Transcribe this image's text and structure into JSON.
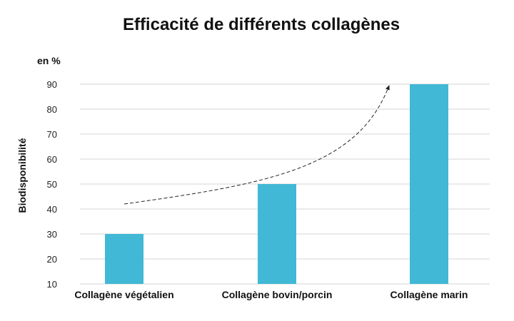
{
  "chart_data": {
    "type": "bar",
    "title": "Efficacité de différents collagènes",
    "unit_label": "en %",
    "xlabel": "",
    "ylabel": "Biodisponibilité",
    "categories": [
      "Collagène végétalien",
      "Collagène bovin/porcin",
      "Collagène marin"
    ],
    "values": [
      30,
      50,
      90
    ],
    "ylim": [
      10,
      90
    ],
    "yticks": [
      10,
      20,
      30,
      40,
      50,
      60,
      70,
      80,
      90
    ],
    "grid": true,
    "legend": "none",
    "bar_color": "#41B8D5",
    "annotation": "dashed curved arrow rising from the first bar to the last bar"
  }
}
